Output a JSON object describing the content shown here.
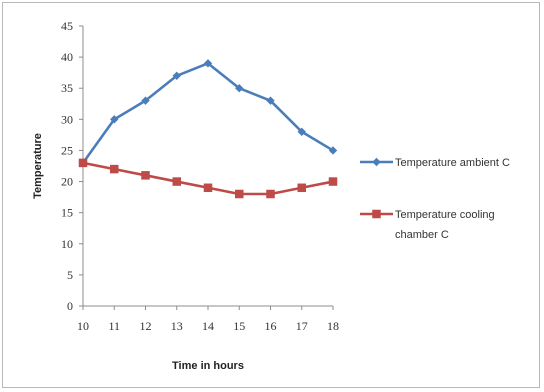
{
  "chart_data": {
    "type": "line",
    "title": "",
    "xlabel": "Time in hours",
    "ylabel": "Temperature",
    "x": [
      10,
      11,
      12,
      13,
      14,
      15,
      16,
      17,
      18
    ],
    "ylim": [
      0,
      45
    ],
    "yticks": [
      0,
      5,
      10,
      15,
      20,
      25,
      30,
      35,
      40,
      45
    ],
    "grid": false,
    "legend_position": "right",
    "series": [
      {
        "name": "Temperature ambient C",
        "values": [
          23,
          30,
          33,
          37,
          39,
          35,
          33,
          28,
          25
        ],
        "color": "#4a7ebb",
        "marker": "diamond"
      },
      {
        "name": "Temperature  cooling chamber C",
        "legend_lines": [
          "Temperature  cooling",
          "chamber C"
        ],
        "values": [
          23,
          22,
          21,
          20,
          19,
          18,
          18,
          19,
          20
        ],
        "color": "#be4b48",
        "marker": "square"
      }
    ]
  }
}
